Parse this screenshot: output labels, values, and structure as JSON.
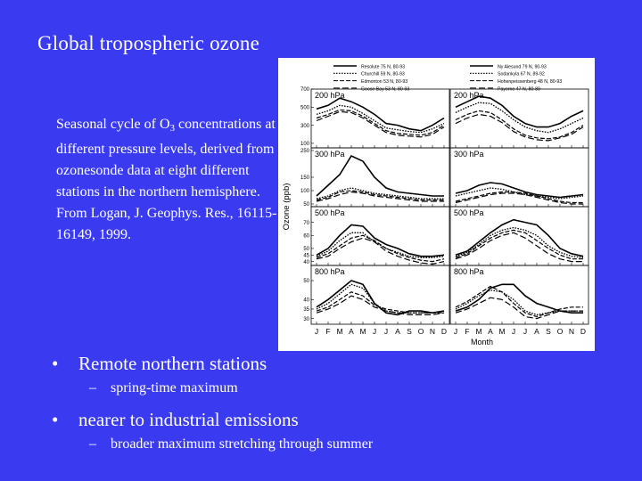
{
  "slide": {
    "title": "Global tropospheric ozone",
    "caption_main": "Seasonal cycle of O",
    "caption_sub": "3",
    "caption_rest": " concentrations at different pressure levels, derived from ozonesonde data at eight different stations in the northern hemisphere.  From Logan, J. Geophys. Res., 16115-16149, 1999.",
    "bullets": [
      {
        "text": "Remote northern stations",
        "sub": "spring-time maximum"
      },
      {
        "text": "nearer to industrial emissions",
        "sub": "broader maximum stretching through summer"
      }
    ]
  },
  "chart_data": {
    "type": "line",
    "ylabel": "Ozone (ppb)",
    "xlabel": "Month",
    "x": [
      "J",
      "F",
      "M",
      "A",
      "M",
      "J",
      "J",
      "A",
      "S",
      "O",
      "N",
      "D"
    ],
    "legend_position": "top",
    "legend": [
      "Resolute 75 N, 80-93",
      "Churchill 59 N, 80-93",
      "Edmonton 53 N, 80-93",
      "Goose Bay 53 N, 80-93",
      "Ny Alesund 79 N, 90-93",
      "Sodankyla 67 N, 89-92",
      "Hohenpeissenberg 48 N, 80-93",
      "Payerne 47 N, 80-89"
    ],
    "rows": [
      {
        "level": "200 hPa",
        "ylim": [
          50,
          700
        ],
        "ticks": [
          700,
          500,
          300,
          100
        ],
        "left": [
          [
            480,
            520,
            600,
            560,
            500,
            420,
            320,
            300,
            260,
            240,
            300,
            380
          ],
          [
            420,
            460,
            520,
            500,
            430,
            350,
            270,
            250,
            230,
            220,
            260,
            320
          ],
          [
            380,
            420,
            470,
            460,
            400,
            320,
            240,
            210,
            200,
            190,
            220,
            300
          ],
          [
            350,
            400,
            450,
            440,
            380,
            300,
            220,
            190,
            180,
            170,
            200,
            280
          ]
        ],
        "right": [
          [
            500,
            560,
            620,
            600,
            520,
            400,
            320,
            280,
            280,
            320,
            400,
            460
          ],
          [
            440,
            500,
            550,
            540,
            460,
            360,
            280,
            240,
            220,
            260,
            320,
            380
          ],
          [
            360,
            420,
            460,
            440,
            360,
            260,
            190,
            160,
            150,
            170,
            220,
            300
          ],
          [
            320,
            380,
            420,
            400,
            330,
            230,
            170,
            140,
            130,
            160,
            200,
            280
          ]
        ]
      },
      {
        "level": "300 hPa",
        "ylim": [
          40,
          260
        ],
        "ticks": [
          250,
          150,
          100,
          50
        ],
        "left": [
          [
            80,
            120,
            160,
            230,
            210,
            150,
            110,
            95,
            90,
            85,
            80,
            80
          ],
          [
            70,
            80,
            100,
            110,
            100,
            90,
            85,
            80,
            75,
            70,
            70,
            70
          ],
          [
            65,
            75,
            95,
            100,
            95,
            85,
            80,
            75,
            70,
            65,
            65,
            65
          ],
          [
            60,
            70,
            85,
            95,
            90,
            80,
            75,
            70,
            65,
            60,
            60,
            60
          ]
        ],
        "right": [
          [
            90,
            100,
            120,
            130,
            125,
            110,
            95,
            85,
            80,
            75,
            80,
            85
          ],
          [
            80,
            90,
            100,
            110,
            105,
            95,
            85,
            80,
            75,
            70,
            75,
            80
          ],
          [
            60,
            70,
            80,
            90,
            95,
            95,
            90,
            80,
            70,
            60,
            55,
            55
          ],
          [
            55,
            65,
            75,
            85,
            90,
            90,
            85,
            75,
            65,
            55,
            50,
            50
          ]
        ]
      },
      {
        "level": "500 hPa",
        "ylim": [
          37,
          82
        ],
        "ticks": [
          70,
          60,
          50,
          45,
          40
        ],
        "left": [
          [
            45,
            50,
            60,
            68,
            67,
            58,
            53,
            50,
            46,
            44,
            44,
            45
          ],
          [
            44,
            48,
            56,
            62,
            62,
            55,
            50,
            47,
            44,
            43,
            43,
            44
          ],
          [
            43,
            46,
            52,
            58,
            60,
            56,
            50,
            46,
            43,
            41,
            40,
            42
          ],
          [
            42,
            44,
            50,
            55,
            58,
            55,
            48,
            44,
            41,
            39,
            38,
            40
          ]
        ],
        "right": [
          [
            45,
            48,
            55,
            62,
            68,
            72,
            70,
            68,
            60,
            50,
            46,
            44
          ],
          [
            44,
            47,
            53,
            60,
            64,
            66,
            64,
            60,
            52,
            47,
            44,
            43
          ],
          [
            43,
            46,
            52,
            58,
            62,
            64,
            62,
            56,
            50,
            45,
            42,
            42
          ],
          [
            42,
            45,
            50,
            56,
            60,
            62,
            58,
            52,
            46,
            42,
            40,
            40
          ]
        ]
      },
      {
        "level": "800 hPa",
        "ylim": [
          27,
          58
        ],
        "ticks": [
          50,
          40,
          35,
          30
        ],
        "left": [
          [
            36,
            40,
            45,
            50,
            48,
            38,
            33,
            32,
            34,
            34,
            33,
            34
          ],
          [
            35,
            38,
            43,
            48,
            46,
            38,
            34,
            33,
            33,
            33,
            33,
            34
          ],
          [
            34,
            36,
            40,
            44,
            42,
            37,
            35,
            34,
            33,
            33,
            33,
            33
          ],
          [
            33,
            35,
            38,
            42,
            40,
            36,
            34,
            33,
            32,
            32,
            32,
            33
          ]
        ],
        "right": [
          [
            34,
            36,
            40,
            46,
            48,
            48,
            42,
            38,
            36,
            34,
            33,
            33
          ],
          [
            35,
            38,
            42,
            45,
            44,
            40,
            34,
            32,
            33,
            34,
            34,
            34
          ],
          [
            36,
            39,
            43,
            47,
            44,
            38,
            33,
            31,
            33,
            35,
            36,
            36
          ],
          [
            33,
            35,
            38,
            41,
            40,
            36,
            31,
            30,
            32,
            34,
            34,
            34
          ]
        ]
      }
    ]
  }
}
